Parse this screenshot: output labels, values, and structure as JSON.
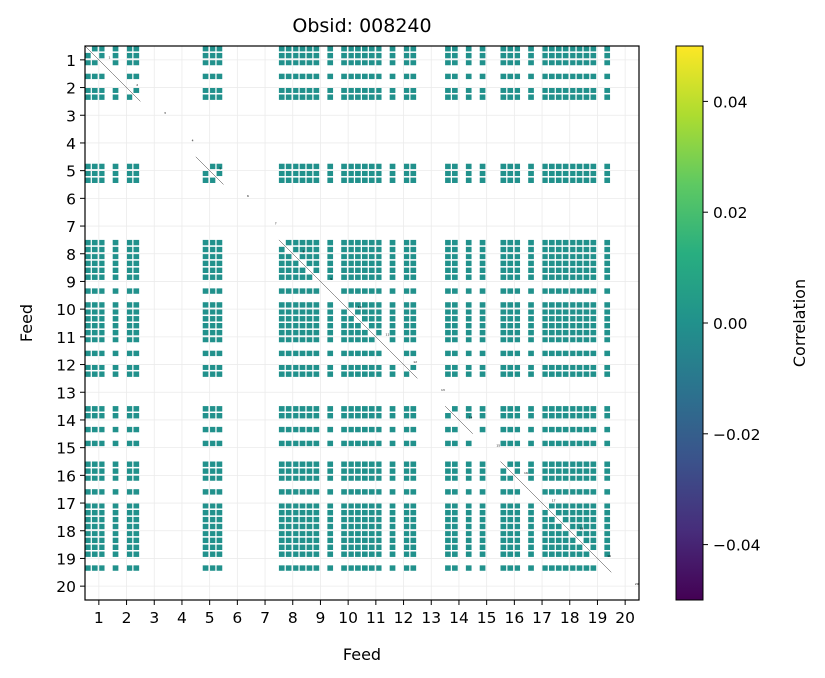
{
  "chart_data": {
    "type": "heatmap",
    "title": "Obsid: 008240",
    "xlabel": "Feed",
    "ylabel": "Feed",
    "x_ticks": [
      "1",
      "2",
      "3",
      "4",
      "5",
      "6",
      "7",
      "8",
      "9",
      "10",
      "11",
      "12",
      "13",
      "14",
      "15",
      "16",
      "17",
      "18",
      "19",
      "20"
    ],
    "y_ticks": [
      "1",
      "2",
      "3",
      "4",
      "5",
      "6",
      "7",
      "8",
      "9",
      "10",
      "11",
      "12",
      "13",
      "14",
      "15",
      "16",
      "17",
      "18",
      "19",
      "20"
    ],
    "feeds": [
      1,
      2,
      3,
      4,
      5,
      6,
      7,
      8,
      9,
      10,
      11,
      12,
      13,
      14,
      15,
      16,
      17,
      18,
      19,
      20
    ],
    "feed_data_status": {
      "full": [
        1,
        2,
        5,
        8,
        9,
        10,
        11,
        12,
        14,
        16,
        17,
        18,
        19
      ],
      "partial": [
        15
      ],
      "none": [
        3,
        4,
        6,
        7,
        13,
        20
      ]
    },
    "block_value": 0.0,
    "diagonal": "masked",
    "grid": true,
    "colorbar": {
      "label": "Correlation",
      "colormap": "viridis",
      "vmin": -0.05,
      "vmax": 0.05,
      "ticks": [
        "−0.04",
        "−0.02",
        "0.00",
        "0.02",
        "0.04"
      ],
      "tick_values": [
        -0.04,
        -0.02,
        0.0,
        0.02,
        0.04
      ]
    },
    "colors": {
      "cell": "#21918c",
      "background": "#ffffff",
      "grid": "#ebebeb"
    }
  }
}
